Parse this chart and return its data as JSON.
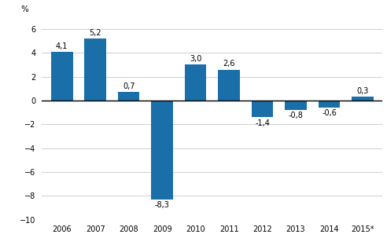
{
  "categories": [
    "2006",
    "2007",
    "2008",
    "2009",
    "2010",
    "2011",
    "2012",
    "2013",
    "2014",
    "2015*"
  ],
  "values": [
    4.1,
    5.2,
    0.7,
    -8.3,
    3.0,
    2.6,
    -1.4,
    -0.8,
    -0.6,
    0.3
  ],
  "labels": [
    "4,1",
    "5,2",
    "0,7",
    "-8,3",
    "3,0",
    "2,6",
    "-1,4",
    "-0,8",
    "-0,6",
    "0,3"
  ],
  "bar_color": "#1a6fa8",
  "ylabel": "%",
  "ylim": [
    -10,
    7
  ],
  "yticks": [
    -10,
    -8,
    -6,
    -4,
    -2,
    0,
    2,
    4,
    6
  ],
  "grid_color": "#c8c8c8",
  "background_color": "#ffffff",
  "label_fontsize": 7.0,
  "tick_fontsize": 7.0,
  "ylabel_fontsize": 7.5
}
